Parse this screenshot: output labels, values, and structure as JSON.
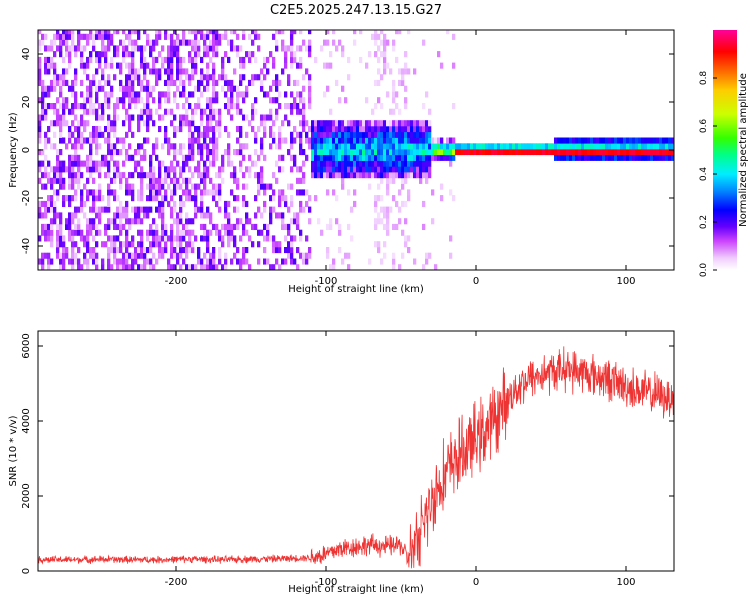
{
  "figure": {
    "title": "C2E5.2025.247.13.15.G27"
  },
  "chart_data": [
    {
      "type": "heatmap",
      "title": "",
      "xlabel": "Height of straight line (km)",
      "ylabel": "Frequency (Hz)",
      "xlim": [
        -292,
        132
      ],
      "ylim": [
        -50,
        50
      ],
      "xticks": [
        -200,
        -100,
        0,
        100
      ],
      "xticklabels": [
        "-200",
        "-100",
        "0",
        "100"
      ],
      "yticks": [
        -40,
        -20,
        0,
        20,
        40
      ],
      "yticklabels": [
        "-40",
        "-20",
        "0",
        "20",
        "40"
      ],
      "colorbar": {
        "label": "Normalized spectral amplitude",
        "range": [
          0,
          1
        ],
        "ticks": [
          0.0,
          0.2,
          0.4,
          0.6,
          0.8
        ],
        "ticklabels": [
          "0.0",
          "0.2",
          "0.4",
          "0.6",
          "0.8"
        ],
        "colors": [
          "#ffffff",
          "#d8a8ff",
          "#9933ff",
          "#5500ff",
          "#0000ff",
          "#00ccff",
          "#00ff66",
          "#77ff00",
          "#ffff00",
          "#ff8800",
          "#ff0000",
          "#ff0099"
        ]
      },
      "regions": [
        {
          "x_range": [
            -292,
            -170
          ],
          "description_level": 0.18,
          "freq_spread": 50
        },
        {
          "x_range": [
            -170,
            -110
          ],
          "description_level": 0.15,
          "freq_spread": 50
        },
        {
          "x_range": [
            -110,
            -30
          ],
          "description_level": 0.3,
          "freq_spread": 12
        },
        {
          "x_range": [
            -30,
            -15
          ],
          "description_level": 0.55,
          "freq_spread": 4
        },
        {
          "x_range": [
            -15,
            132
          ],
          "description_level": 0.95,
          "freq_spread": 1.5
        }
      ]
    },
    {
      "type": "line",
      "title": "",
      "xlabel": "Height of straight line (km)",
      "ylabel": "SNR (10 * v/v)",
      "xlim": [
        -292,
        132
      ],
      "ylim": [
        0,
        6400
      ],
      "xticks": [
        -200,
        -100,
        0,
        100
      ],
      "xticklabels": [
        "-200",
        "-100",
        "0",
        "100"
      ],
      "yticks": [
        0,
        2000,
        4000,
        6000
      ],
      "yticklabels": [
        "0",
        "2000",
        "4000",
        "6000"
      ],
      "color": "#ee3333",
      "series": [
        {
          "name": "SNR",
          "x": [
            -292,
            -270,
            -250,
            -230,
            -210,
            -190,
            -170,
            -150,
            -130,
            -110,
            -100,
            -90,
            -80,
            -70,
            -60,
            -50,
            -45,
            -40,
            -35,
            -30,
            -25,
            -20,
            -15,
            -10,
            -5,
            0,
            5,
            10,
            15,
            20,
            25,
            30,
            35,
            40,
            50,
            60,
            70,
            80,
            90,
            100,
            110,
            120,
            132
          ],
          "y": [
            300,
            300,
            310,
            300,
            300,
            320,
            300,
            320,
            330,
            360,
            450,
            600,
            650,
            700,
            650,
            700,
            300,
            600,
            1300,
            1800,
            2300,
            2600,
            2900,
            3100,
            3300,
            3500,
            3700,
            3900,
            4200,
            4500,
            4800,
            5000,
            5100,
            5200,
            5300,
            5400,
            5300,
            5200,
            5100,
            4900,
            4800,
            4700,
            4600
          ]
        }
      ]
    }
  ]
}
